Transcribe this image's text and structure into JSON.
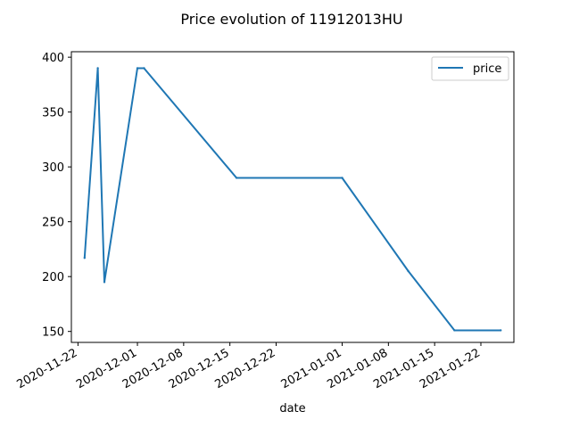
{
  "chart_data": {
    "type": "line",
    "title": "Price evolution of 11912013HU",
    "xlabel": "date",
    "ylabel": "",
    "x_tick_labels": [
      "2020-11-22",
      "2020-12-01",
      "2020-12-08",
      "2020-12-15",
      "2020-12-22",
      "2021-01-01",
      "2021-01-08",
      "2021-01-15",
      "2021-01-22"
    ],
    "y_ticks": [
      150,
      200,
      250,
      300,
      350,
      400
    ],
    "xlim": [
      "2020-11-21",
      "2021-01-27"
    ],
    "ylim": [
      140,
      405
    ],
    "legend": {
      "position": "top-right"
    },
    "grid": false,
    "series": [
      {
        "name": "price",
        "color": "#1f77b4",
        "x": [
          "2020-11-23",
          "2020-11-25",
          "2020-11-26",
          "2020-12-01",
          "2020-12-02",
          "2020-12-16",
          "2021-01-01",
          "2021-01-11",
          "2021-01-18",
          "2021-01-25"
        ],
        "y": [
          217,
          390,
          195,
          390,
          390,
          290,
          290,
          205,
          151,
          151
        ]
      }
    ]
  }
}
